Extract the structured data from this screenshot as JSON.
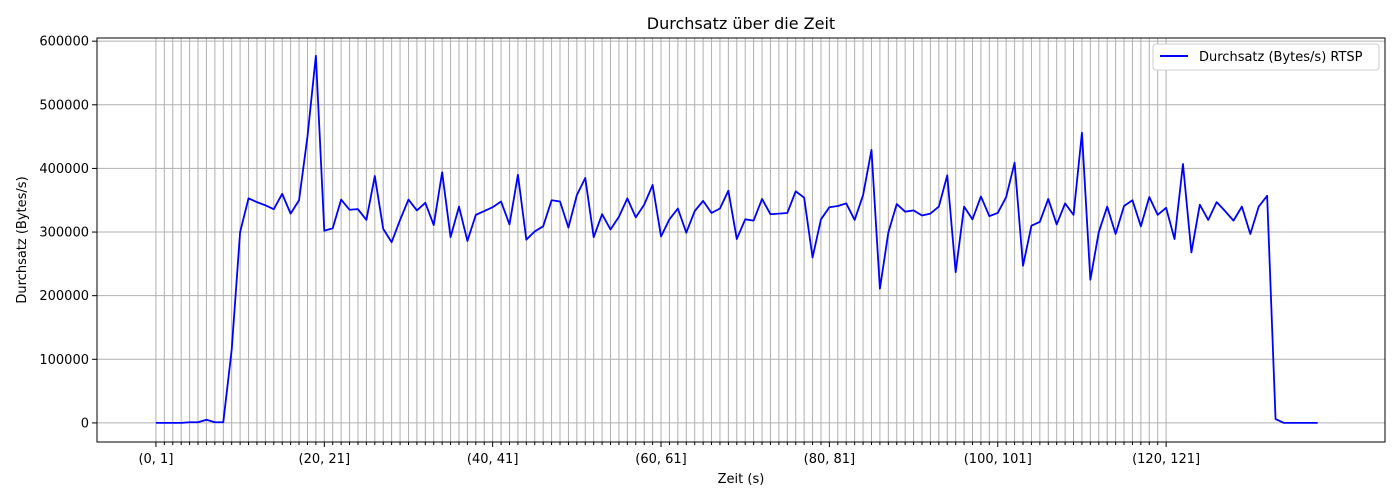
{
  "chart_data": {
    "type": "line",
    "title": "Durchsatz über die Zeit",
    "xlabel": "Zeit (s)",
    "ylabel": "Durchsatz (Bytes/s)",
    "xlim": [
      -7,
      146
    ],
    "ylim": [
      -30000,
      605000
    ],
    "grid": true,
    "grid_x_interval_max": 120,
    "legend_position": "top-right",
    "x_tick_labels": [
      "(0, 1]",
      "(20, 21]",
      "(40, 41]",
      "(60, 61]",
      "(80, 81]",
      "(100, 101]",
      "(120, 121]"
    ],
    "x_tick_positions": [
      0,
      20,
      40,
      60,
      80,
      100,
      120
    ],
    "y_ticks": [
      0,
      100000,
      200000,
      300000,
      400000,
      500000,
      600000
    ],
    "y_tick_labels": [
      "0",
      "100000",
      "200000",
      "300000",
      "400000",
      "500000",
      "600000"
    ],
    "series": [
      {
        "name": "Durchsatz (Bytes/s) RTSP",
        "color": "#0000ff",
        "x": [
          0,
          1,
          2,
          3,
          4,
          5,
          6,
          7,
          8,
          9,
          10,
          11,
          12,
          13,
          14,
          15,
          16,
          17,
          18,
          19,
          20,
          21,
          22,
          23,
          24,
          25,
          26,
          27,
          28,
          29,
          30,
          31,
          32,
          33,
          34,
          35,
          36,
          37,
          38,
          39,
          40,
          41,
          42,
          43,
          44,
          45,
          46,
          47,
          48,
          49,
          50,
          51,
          52,
          53,
          54,
          55,
          56,
          57,
          58,
          59,
          60,
          61,
          62,
          63,
          64,
          65,
          66,
          67,
          68,
          69,
          70,
          71,
          72,
          73,
          74,
          75,
          76,
          77,
          78,
          79,
          80,
          81,
          82,
          83,
          84,
          85,
          86,
          87,
          88,
          89,
          90,
          91,
          92,
          93,
          94,
          95,
          96,
          97,
          98,
          99,
          100,
          101,
          102,
          103,
          104,
          105,
          106,
          107,
          108,
          109,
          110,
          111,
          112,
          113,
          114,
          115,
          116,
          117,
          118,
          119,
          120,
          121,
          122,
          123,
          124,
          125,
          126,
          127,
          128,
          129,
          130,
          131,
          132,
          133,
          134,
          135,
          136,
          137,
          138
        ],
        "y": [
          0,
          0,
          0,
          0,
          1000,
          1000,
          5000,
          1000,
          1000,
          115000,
          300000,
          353000,
          347000,
          342000,
          336000,
          360000,
          329000,
          350000,
          450000,
          577000,
          302000,
          306000,
          351000,
          335000,
          336000,
          319000,
          388000,
          305000,
          284000,
          319000,
          351000,
          334000,
          346000,
          311000,
          394000,
          292000,
          340000,
          286000,
          327000,
          333000,
          339000,
          348000,
          312000,
          390000,
          288000,
          301000,
          309000,
          350000,
          348000,
          307000,
          358000,
          385000,
          292000,
          328000,
          304000,
          324000,
          353000,
          323000,
          343000,
          374000,
          293000,
          320000,
          337000,
          299000,
          333000,
          349000,
          330000,
          337000,
          365000,
          289000,
          320000,
          318000,
          352000,
          328000,
          329000,
          330000,
          364000,
          354000,
          260000,
          320000,
          339000,
          341000,
          345000,
          319000,
          358000,
          429000,
          211000,
          299000,
          344000,
          332000,
          334000,
          326000,
          329000,
          340000,
          389000,
          237000,
          340000,
          320000,
          356000,
          325000,
          330000,
          355000,
          409000,
          247000,
          310000,
          316000,
          352000,
          312000,
          345000,
          327000,
          456000,
          225000,
          300000,
          340000,
          297000,
          341000,
          350000,
          309000,
          355000,
          327000,
          338000,
          289000,
          407000,
          268000,
          343000,
          319000,
          347000,
          333000,
          318000,
          340000,
          297000,
          340000,
          357000,
          6000,
          0,
          0,
          0,
          0,
          0
        ]
      }
    ]
  }
}
